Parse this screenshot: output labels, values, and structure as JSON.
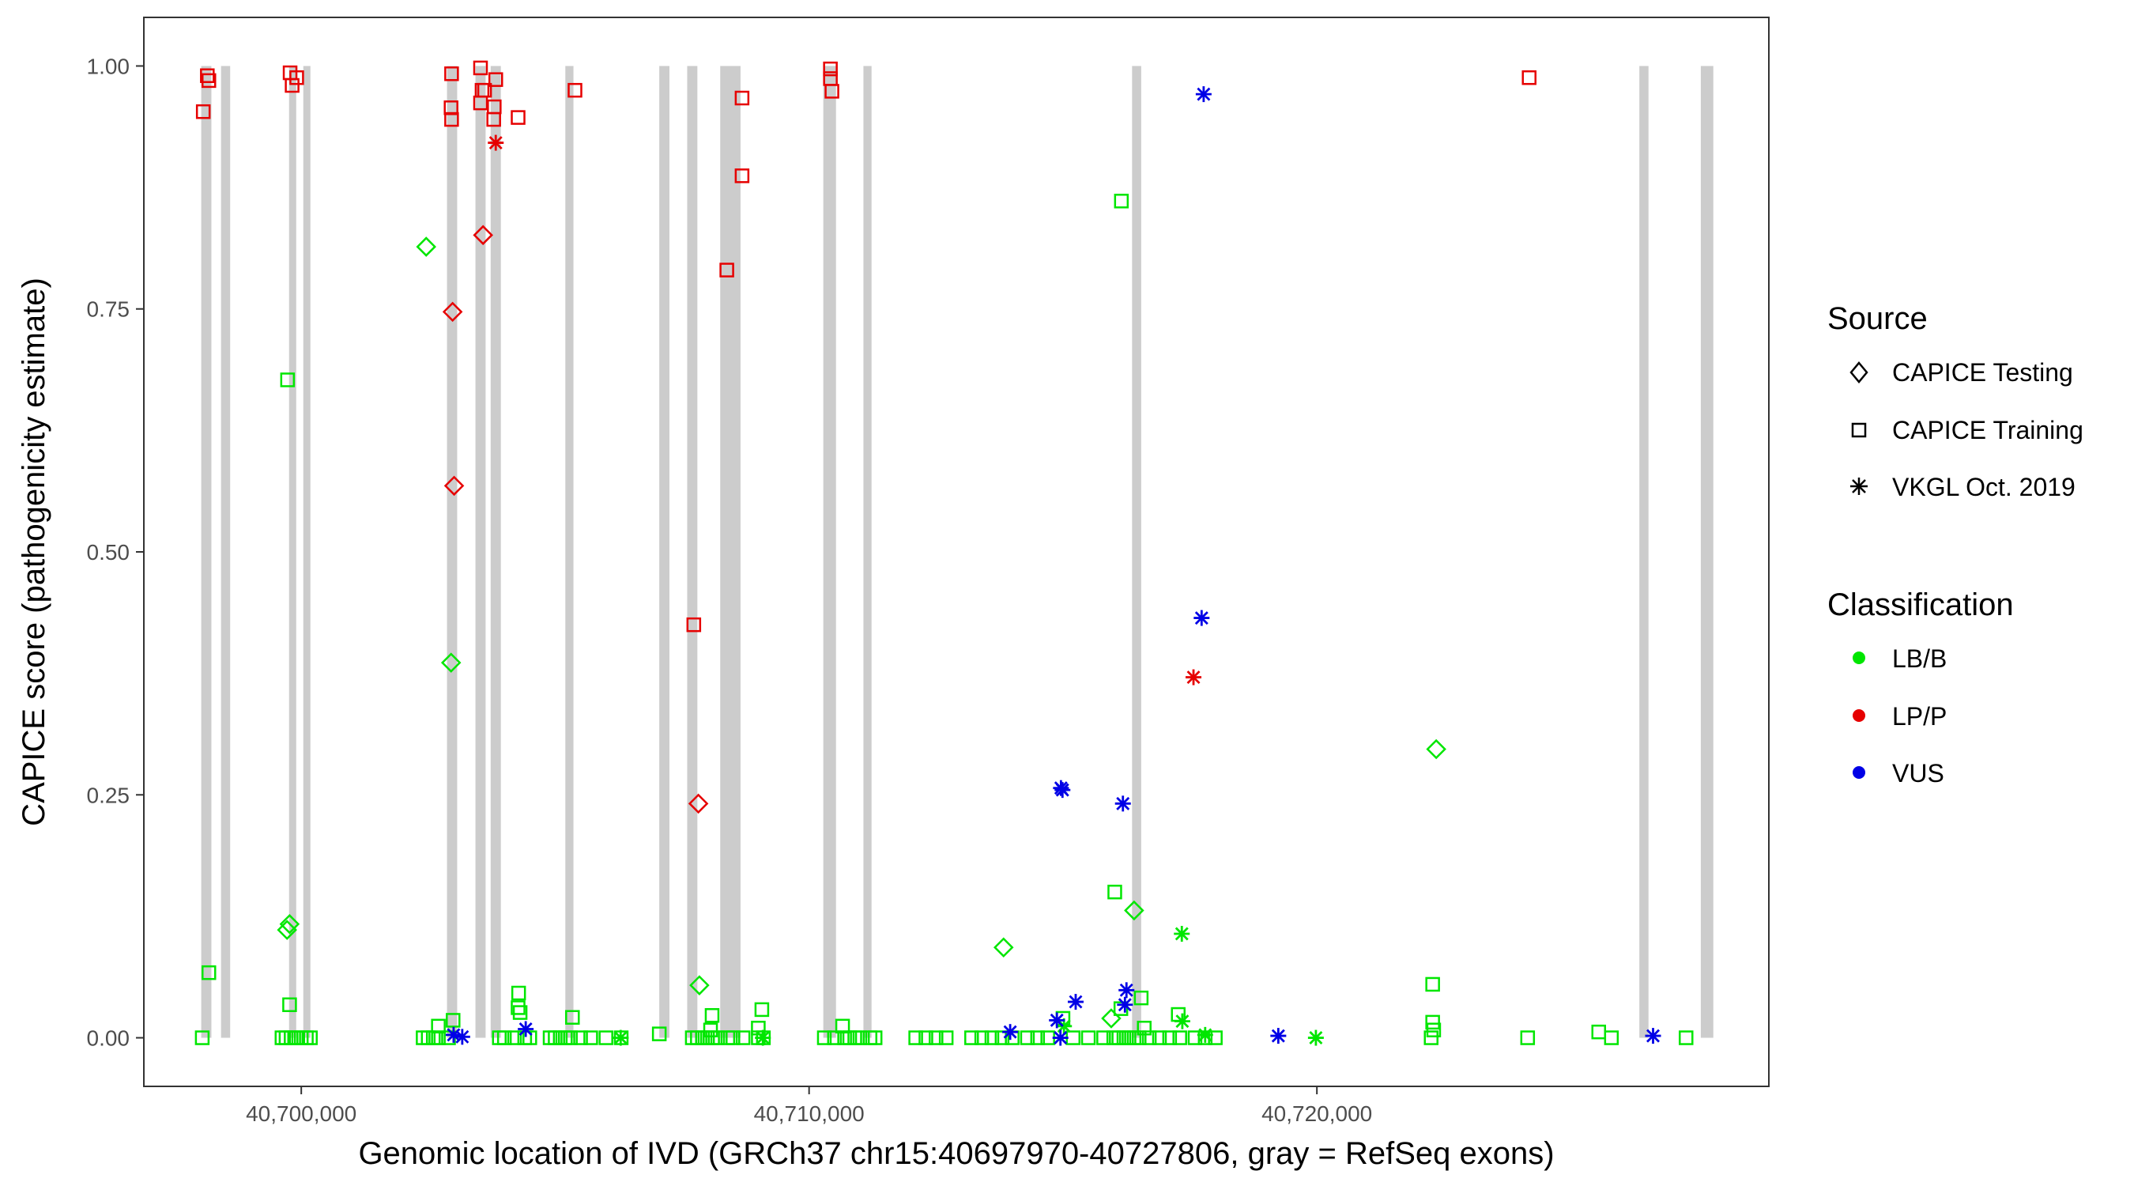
{
  "chart_data": {
    "type": "scatter",
    "title": "",
    "xlabel": "Genomic location of IVD (GRCh37 chr15:40697970-40727806, gray = RefSeq exons)",
    "ylabel": "CAPICE score (pathogenicity estimate)",
    "xlim": [
      40696900,
      40728900
    ],
    "ylim": [
      -0.05,
      1.05
    ],
    "x_ticks": [
      40700000,
      40710000,
      40720000
    ],
    "x_tick_labels": [
      "40,700,000",
      "40,710,000",
      "40,720,000"
    ],
    "y_ticks": [
      0,
      0.25,
      0.5,
      0.75,
      1
    ],
    "y_tick_labels": [
      "0.00",
      "0.25",
      "0.50",
      "0.75",
      "1.00"
    ],
    "grid": false,
    "exons": [
      [
        40698030,
        40698230
      ],
      [
        40698420,
        40698600
      ],
      [
        40699760,
        40699900
      ],
      [
        40700040,
        40700180
      ],
      [
        40702870,
        40703070
      ],
      [
        40703430,
        40703630
      ],
      [
        40703730,
        40703930
      ],
      [
        40705200,
        40705360
      ],
      [
        40707050,
        40707250
      ],
      [
        40707600,
        40707800
      ],
      [
        40708250,
        40708650
      ],
      [
        40710280,
        40710530
      ],
      [
        40711070,
        40711230
      ],
      [
        40716360,
        40716540
      ],
      [
        40726350,
        40726530
      ],
      [
        40727560,
        40727806
      ]
    ],
    "colors": {
      "LB/B": "#00e600",
      "LP/P": "#e60000",
      "VUS": "#0000e6",
      "exon": "#cccccc"
    },
    "legend": {
      "position": "right",
      "source_title": "Source",
      "source_entries": [
        {
          "label": "CAPICE Testing",
          "shape": "diamond"
        },
        {
          "label": "CAPICE Training",
          "shape": "square"
        },
        {
          "label": "VKGL Oct. 2019",
          "shape": "asterisk"
        }
      ],
      "class_title": "Classification",
      "class_entries": [
        {
          "label": "LB/B",
          "color": "#00e600"
        },
        {
          "label": "LP/P",
          "color": "#e60000"
        },
        {
          "label": "VUS",
          "color": "#0000e6"
        }
      ]
    },
    "series": [
      {
        "source": "CAPICE Training",
        "classification": "LP/P",
        "points": [
          [
            40698070,
            0.953
          ],
          [
            40698150,
            0.99
          ],
          [
            40698180,
            0.985
          ],
          [
            40699780,
            0.993
          ],
          [
            40699820,
            0.98
          ],
          [
            40699910,
            0.988
          ],
          [
            40702960,
            0.992
          ],
          [
            40702950,
            0.957
          ],
          [
            40702960,
            0.945
          ],
          [
            40703530,
            0.998
          ],
          [
            40703610,
            0.975
          ],
          [
            40703560,
            0.975
          ],
          [
            40703530,
            0.962
          ],
          [
            40703830,
            0.986
          ],
          [
            40703800,
            0.958
          ],
          [
            40703790,
            0.945
          ],
          [
            40704270,
            0.947
          ],
          [
            40705390,
            0.975
          ],
          [
            40707730,
            0.425
          ],
          [
            40708380,
            0.79
          ],
          [
            40708680,
            0.967
          ],
          [
            40708680,
            0.887
          ],
          [
            40710420,
            0.997
          ],
          [
            40710420,
            0.987
          ],
          [
            40710450,
            0.974
          ],
          [
            40724180,
            0.988
          ]
        ]
      },
      {
        "source": "CAPICE Testing",
        "classification": "LP/P",
        "points": [
          [
            40703580,
            0.826
          ],
          [
            40702980,
            0.747
          ],
          [
            40703010,
            0.568
          ],
          [
            40707820,
            0.241
          ]
        ]
      },
      {
        "source": "VKGL Oct. 2019",
        "classification": "LP/P",
        "points": [
          [
            40703830,
            0.921
          ],
          [
            40717570,
            0.371
          ]
        ]
      },
      {
        "source": "CAPICE Training",
        "classification": "LB/B",
        "points": [
          [
            40699730,
            0.677
          ],
          [
            40716150,
            0.861
          ],
          [
            40716020,
            0.15
          ],
          [
            40698180,
            0.067
          ],
          [
            40699770,
            0.034
          ],
          [
            40704280,
            0.046
          ],
          [
            40704270,
            0.031
          ],
          [
            40704310,
            0.026
          ],
          [
            40705340,
            0.021
          ],
          [
            40708090,
            0.023
          ],
          [
            40709070,
            0.029
          ],
          [
            40709000,
            0.01
          ],
          [
            40710660,
            0.012
          ],
          [
            40717270,
            0.024
          ],
          [
            40722280,
            0.055
          ],
          [
            40722280,
            0.016
          ],
          [
            40722300,
            0.008
          ],
          [
            40725550,
            0.006
          ],
          [
            40716540,
            0.041
          ],
          [
            40716140,
            0.03
          ],
          [
            40715000,
            0.02
          ],
          [
            40702700,
            0.012
          ],
          [
            40702990,
            0.018
          ],
          [
            40708060,
            0.008
          ],
          [
            40716600,
            0.01
          ],
          [
            40698050,
            0
          ],
          [
            40699620,
            0
          ],
          [
            40699700,
            0
          ],
          [
            40699800,
            0
          ],
          [
            40699900,
            0
          ],
          [
            40700000,
            0
          ],
          [
            40700100,
            0
          ],
          [
            40700180,
            0
          ],
          [
            40702400,
            0
          ],
          [
            40702500,
            0
          ],
          [
            40702600,
            0
          ],
          [
            40702700,
            0
          ],
          [
            40702900,
            0
          ],
          [
            40703900,
            0
          ],
          [
            40704000,
            0
          ],
          [
            40704200,
            0
          ],
          [
            40704400,
            0
          ],
          [
            40704500,
            0
          ],
          [
            40704900,
            0
          ],
          [
            40705000,
            0
          ],
          [
            40705100,
            0
          ],
          [
            40705200,
            0
          ],
          [
            40705300,
            0
          ],
          [
            40705500,
            0
          ],
          [
            40705700,
            0
          ],
          [
            40706000,
            0
          ],
          [
            40706300,
            0
          ],
          [
            40707050,
            0.004
          ],
          [
            40707700,
            0
          ],
          [
            40707800,
            0
          ],
          [
            40707900,
            0
          ],
          [
            40708000,
            0
          ],
          [
            40708100,
            0
          ],
          [
            40708200,
            0
          ],
          [
            40708400,
            0
          ],
          [
            40708500,
            0
          ],
          [
            40708700,
            0
          ],
          [
            40709000,
            0
          ],
          [
            40709100,
            0
          ],
          [
            40710300,
            0
          ],
          [
            40710500,
            0
          ],
          [
            40710700,
            0
          ],
          [
            40710800,
            0
          ],
          [
            40710900,
            0
          ],
          [
            40711000,
            0
          ],
          [
            40711200,
            0
          ],
          [
            40711300,
            0
          ],
          [
            40712100,
            0
          ],
          [
            40712300,
            0
          ],
          [
            40712500,
            0
          ],
          [
            40712700,
            0
          ],
          [
            40713200,
            0
          ],
          [
            40713400,
            0
          ],
          [
            40713600,
            0
          ],
          [
            40713800,
            0
          ],
          [
            40714000,
            0
          ],
          [
            40714300,
            0
          ],
          [
            40714500,
            0
          ],
          [
            40714700,
            0
          ],
          [
            40715200,
            0
          ],
          [
            40715500,
            0
          ],
          [
            40715800,
            0
          ],
          [
            40716000,
            0
          ],
          [
            40716100,
            0
          ],
          [
            40716200,
            0
          ],
          [
            40716300,
            0
          ],
          [
            40716400,
            0
          ],
          [
            40716500,
            0
          ],
          [
            40716700,
            0
          ],
          [
            40716900,
            0
          ],
          [
            40717100,
            0
          ],
          [
            40717300,
            0
          ],
          [
            40717600,
            0
          ],
          [
            40717800,
            0
          ],
          [
            40718000,
            0
          ],
          [
            40722250,
            0
          ],
          [
            40724150,
            0
          ],
          [
            40725800,
            0
          ],
          [
            40727270,
            0
          ]
        ]
      },
      {
        "source": "CAPICE Testing",
        "classification": "LB/B",
        "points": [
          [
            40702460,
            0.814
          ],
          [
            40702950,
            0.386
          ],
          [
            40699770,
            0.117
          ],
          [
            40699720,
            0.111
          ],
          [
            40707840,
            0.054
          ],
          [
            40713830,
            0.093
          ],
          [
            40716400,
            0.131
          ],
          [
            40722350,
            0.297
          ],
          [
            40715950,
            0.02
          ]
        ]
      },
      {
        "source": "VKGL Oct. 2019",
        "classification": "LB/B",
        "points": [
          [
            40717340,
            0.107
          ],
          [
            40717350,
            0.017
          ],
          [
            40715020,
            0.012
          ],
          [
            40706290,
            0
          ],
          [
            40719980,
            0
          ],
          [
            40717800,
            0.003
          ],
          [
            40709090,
            0
          ]
        ]
      },
      {
        "source": "VKGL Oct. 2019",
        "classification": "VUS",
        "points": [
          [
            40717770,
            0.971
          ],
          [
            40717730,
            0.432
          ],
          [
            40714960,
            0.257
          ],
          [
            40714990,
            0.255
          ],
          [
            40716180,
            0.241
          ],
          [
            40716250,
            0.049
          ],
          [
            40715250,
            0.037
          ],
          [
            40716220,
            0.034
          ],
          [
            40714880,
            0.018
          ],
          [
            40713960,
            0.006
          ],
          [
            40714950,
            0
          ],
          [
            40703000,
            0.003
          ],
          [
            40703170,
            0.001
          ],
          [
            40704420,
            0.009
          ],
          [
            40719240,
            0.002
          ],
          [
            40726620,
            0.002
          ]
        ]
      }
    ]
  }
}
